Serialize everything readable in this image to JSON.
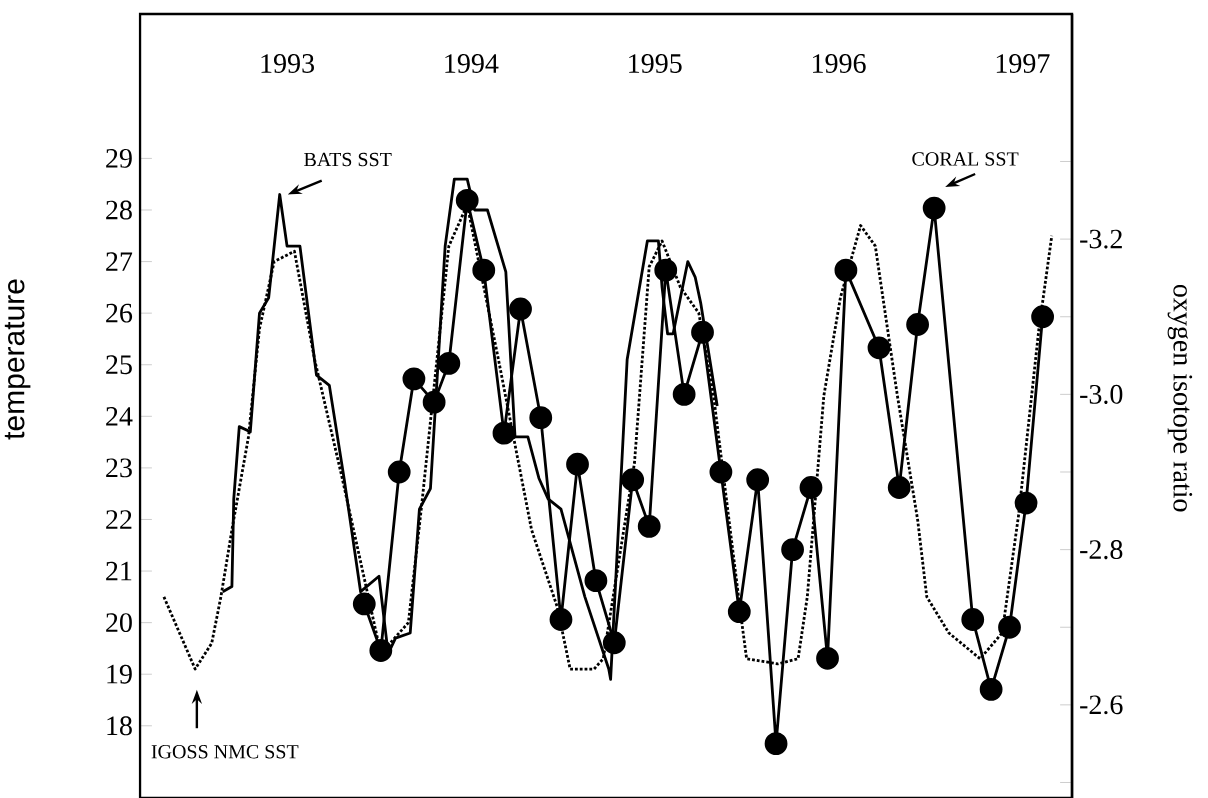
{
  "chart_data": {
    "type": "line",
    "xlim": [
      1992.2,
      1997.27
    ],
    "ylim": [
      16.6,
      31.8
    ],
    "y2lim": [
      -2.48,
      -3.49
    ],
    "xticks": [
      1993,
      1994,
      1995,
      1996,
      1997
    ],
    "yticks": [
      18,
      19,
      20,
      21,
      22,
      23,
      24,
      25,
      26,
      27,
      28,
      29
    ],
    "y2ticks": [
      {
        "value": -3.3,
        "label": null
      },
      -3.2,
      {
        "value": -3.1,
        "label": null
      },
      {
        "value": -3.0,
        "label": "-3.0"
      },
      {
        "value": -2.9,
        "label": null
      },
      -2.8,
      {
        "value": -2.7,
        "label": null
      },
      -2.6,
      {
        "value": -2.5,
        "label": null
      }
    ],
    "ylabel": "temperature",
    "y2label": "oxygen isotope ratio",
    "series": [
      {
        "color": "#000000",
        "line_style": "dotted",
        "marker": "none",
        "x": [
          1992.33,
          1992.5,
          1992.59,
          1992.64,
          1992.7,
          1992.79,
          1992.85,
          1992.93,
          1993.04,
          1993.15,
          1993.3,
          1993.51,
          1993.66,
          1993.73,
          1993.88,
          1993.98,
          1994.15,
          1994.33,
          1994.47,
          1994.54,
          1994.67,
          1994.72,
          1994.89,
          1994.97,
          1995.04,
          1995.14,
          1995.24,
          1995.32,
          1995.47,
          1995.5,
          1995.67,
          1995.78,
          1995.83,
          1995.92,
          1996.01,
          1996.12,
          1996.2,
          1996.32,
          1996.43,
          1996.48,
          1996.6,
          1996.77,
          1996.89,
          1996.98,
          1997.09,
          1997.16
        ],
        "values": [
          20.5,
          19.1,
          19.6,
          20.5,
          21.8,
          23.6,
          25.7,
          27.0,
          27.2,
          25.1,
          22.8,
          19.4,
          20.0,
          22.2,
          27.3,
          28.1,
          25.1,
          21.8,
          20.3,
          19.1,
          19.1,
          19.3,
          23.1,
          26.9,
          27.4,
          26.5,
          26.0,
          24.4,
          20.1,
          19.3,
          19.2,
          19.3,
          20.5,
          24.4,
          26.3,
          27.7,
          27.3,
          24.4,
          22.0,
          20.5,
          19.8,
          19.3,
          19.8,
          22.1,
          25.7,
          27.5
        ]
      },
      {
        "color": "#000000",
        "line_style": "solid",
        "marker": "none",
        "x": [
          1992.65,
          1992.7,
          1992.71,
          1992.74,
          1992.8,
          1992.85,
          1992.9,
          1992.96,
          1993.0,
          1993.07,
          1993.16,
          1993.23,
          1993.31,
          1993.4,
          1993.5,
          1993.55,
          1993.59,
          1993.67,
          1993.72,
          1993.78,
          1993.86,
          1993.91,
          1993.98,
          1994.02,
          1994.09,
          1994.19,
          1994.24,
          1994.31,
          1994.37,
          1994.42,
          1994.49,
          1994.62,
          1994.75,
          1994.76,
          1994.85,
          1994.96,
          1995.02,
          1995.04,
          1995.07,
          1995.1,
          1995.18,
          1995.22,
          1995.25,
          1995.34
        ],
        "values": [
          20.6,
          20.7,
          22.4,
          23.8,
          23.7,
          26.0,
          26.3,
          28.3,
          27.3,
          27.3,
          24.8,
          24.6,
          22.8,
          20.6,
          20.9,
          19.4,
          19.7,
          19.8,
          22.2,
          22.6,
          27.3,
          28.6,
          28.6,
          28.0,
          28.0,
          26.8,
          23.6,
          23.6,
          22.8,
          22.4,
          22.2,
          20.5,
          19.1,
          18.9,
          25.1,
          27.4,
          27.4,
          26.5,
          25.6,
          25.6,
          27.0,
          26.7,
          26.2,
          24.2
        ]
      },
      {
        "color": "#000000",
        "line_style": "solid",
        "marker": "circle",
        "axis": "y2",
        "x": [
          1993.42,
          1993.51,
          1993.61,
          1993.69,
          1993.8,
          1993.88,
          1993.98,
          1994.07,
          1994.18,
          1994.27,
          1994.38,
          1994.49,
          1994.58,
          1994.68,
          1994.78,
          1994.88,
          1994.97,
          1995.06,
          1995.16,
          1995.26,
          1995.36,
          1995.46,
          1995.56,
          1995.66,
          1995.75,
          1995.85,
          1995.94,
          1996.04,
          1996.22,
          1996.33,
          1996.43,
          1996.52,
          1996.73,
          1996.83,
          1996.93,
          1997.02,
          1997.11
        ],
        "values": [
          -2.73,
          -2.67,
          -2.9,
          -3.02,
          -2.99,
          -3.04,
          -3.25,
          -3.16,
          -2.95,
          -3.11,
          -2.97,
          -2.71,
          -2.91,
          -2.76,
          -2.68,
          -2.89,
          -2.83,
          -3.16,
          -3.0,
          -3.08,
          -2.9,
          -2.72,
          -2.89,
          -2.55,
          -2.8,
          -2.88,
          -2.66,
          -3.16,
          -3.06,
          -2.88,
          -3.09,
          -3.24,
          -2.71,
          -2.62,
          -2.7,
          -2.86,
          -3.1
        ]
      }
    ],
    "annotations": [
      {
        "text": "BATS SST",
        "x": 1992.96,
        "y": 28.3
      },
      {
        "text": "CORAL SST",
        "x": 1996.52,
        "y": 28.0
      },
      "IGOSS NMC SST"
    ]
  }
}
